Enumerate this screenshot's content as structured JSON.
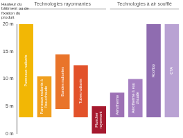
{
  "chart_data": {
    "type": "bar",
    "y_label": "Hauteur du bâtiment ou de fixation du produit",
    "categories": [
      "Panneaux radiants",
      "Panneaux radiants à l'eau chaude",
      "Bandes radiantes",
      "Tubes radiants",
      "Plancher rayonnant",
      "Aérotherme",
      "Aérotherme à eau chaude",
      "Rooftop",
      "CTA"
    ],
    "values": [
      [
        3,
        20
      ],
      [
        3,
        10.5
      ],
      [
        4.5,
        14.5
      ],
      [
        3,
        12.5
      ],
      [
        0,
        5
      ],
      [
        3,
        7.5
      ],
      [
        3,
        10
      ],
      [
        3,
        20
      ],
      [
        3,
        20
      ]
    ],
    "colors": [
      "#f2b705",
      "#f0a01e",
      "#e9742a",
      "#e2522a",
      "#a6192e",
      "#9d71b5",
      "#a680c2",
      "#8f6cb0",
      "#b9a2d3"
    ],
    "groups": [
      {
        "label": "Technologies rayonnantes",
        "members": [
          "Panneaux radiants",
          "Panneaux radiants à l'eau chaude",
          "Bandes radiantes",
          "Tubes radiants",
          "Plancher rayonnant"
        ]
      },
      {
        "label": "Technologies à air soufflé",
        "members": [
          "Aérotherme",
          "Aérotherme à eau chaude",
          "Rooftop",
          "CTA"
        ]
      }
    ],
    "ylim": [
      0,
      20
    ],
    "yticks": [
      {
        "value": 0,
        "label": "0 m"
      },
      {
        "value": 5,
        "label": "5 m"
      },
      {
        "value": 10,
        "label": "10 m"
      },
      {
        "value": 15,
        "label": "15 m"
      },
      {
        "value": 20,
        "label": "20 m"
      }
    ],
    "grid": false,
    "tick_labels": "y"
  }
}
